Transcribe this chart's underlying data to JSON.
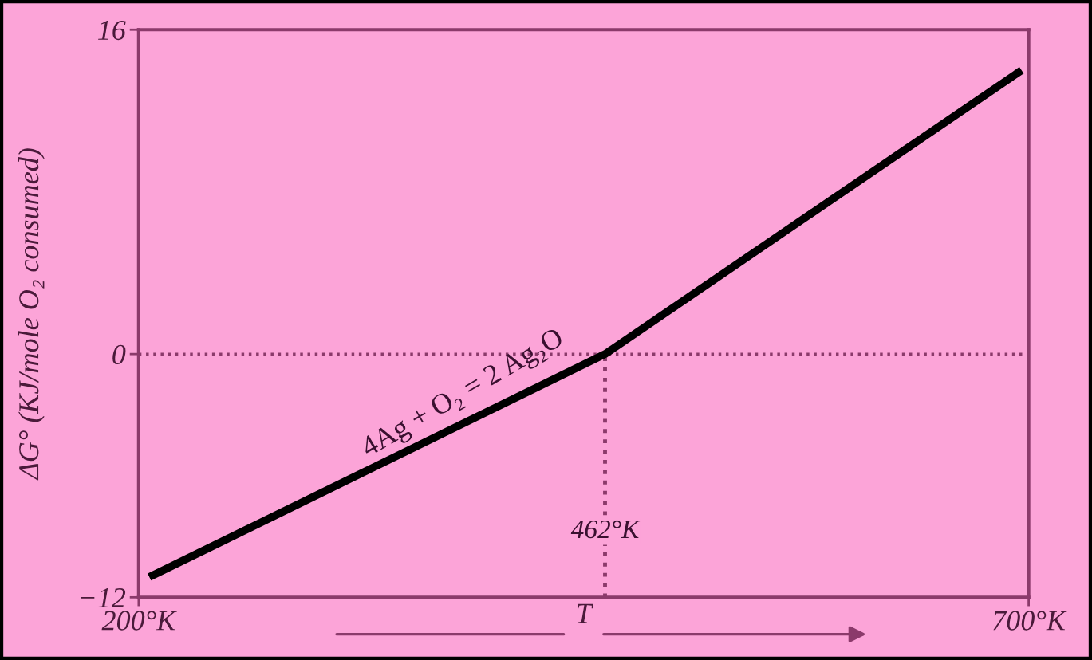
{
  "chart_data": {
    "type": "line",
    "xlabel": "T",
    "ylabel": "ΔG° (KJ/mole O₂ consumed)",
    "x": [
      206,
      462,
      696
    ],
    "series": [
      {
        "color": "#000000",
        "values": [
          -11,
          0,
          14
        ]
      }
    ],
    "xlim": [
      200,
      700
    ],
    "xticks": [
      {
        "value": 200,
        "label": "200°K"
      },
      {
        "value": 700,
        "label": "700°K"
      }
    ],
    "ylim": [
      -12,
      16
    ],
    "yticks": [
      {
        "value": -12,
        "label": "−12"
      },
      0,
      16
    ],
    "ref_lines": [
      {
        "axis": "y",
        "value": 0,
        "color": "#8b3a6b",
        "line_style": "dotted"
      },
      {
        "axis": "x",
        "value": 462,
        "label": "462°K",
        "color": "#8b3a6b",
        "line_style": "dotted"
      }
    ],
    "annotations": [
      {
        "text": "4Ag + O₂ = 2 Ag₂O",
        "x": 386,
        "y": -3.3
      }
    ],
    "grid": false,
    "legend": false
  }
}
